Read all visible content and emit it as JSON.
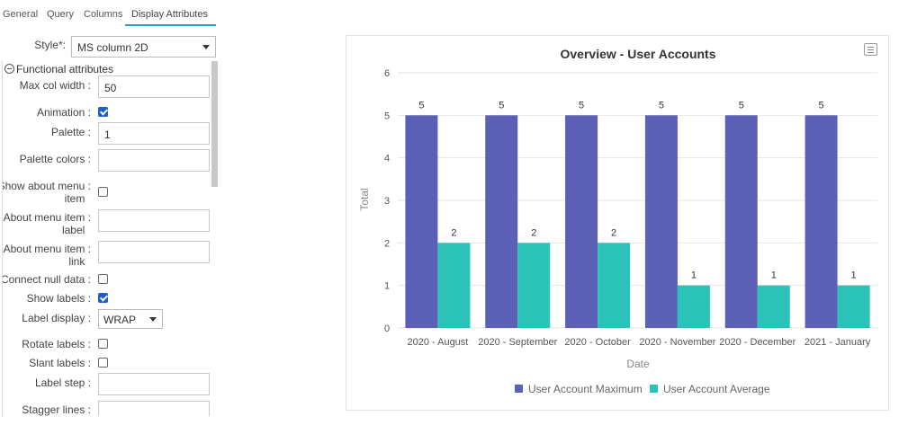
{
  "tabs": [
    {
      "label": "General"
    },
    {
      "label": "Query"
    },
    {
      "label": "Columns"
    },
    {
      "label": "Display Attributes"
    }
  ],
  "style_field": {
    "label": "Style*",
    "colon": ":",
    "value": "MS column 2D"
  },
  "panel": {
    "section_title": "Functional attributes",
    "max_col_width": {
      "label": "Max col width",
      "value": "50"
    },
    "animation": {
      "label": "Animation",
      "checked": true
    },
    "palette": {
      "label": "Palette",
      "value": "1"
    },
    "palette_colors": {
      "label": "Palette colors",
      "value": ""
    },
    "show_about_menu_item": {
      "label_line1": "Show about menu",
      "label_line2": "item",
      "checked": false
    },
    "about_menu_item_label": {
      "label_line1": "About menu item",
      "label_line2": "label",
      "value": ""
    },
    "about_menu_item_link": {
      "label_line1": "About menu item",
      "label_line2": "link",
      "value": ""
    },
    "connect_null_data": {
      "label": "Connect null data",
      "checked": false
    },
    "show_labels": {
      "label": "Show labels",
      "checked": true
    },
    "label_display": {
      "label": "Label display",
      "value": "WRAP"
    },
    "rotate_labels": {
      "label": "Rotate labels",
      "checked": false
    },
    "slant_labels": {
      "label": "Slant labels",
      "checked": false
    },
    "label_step": {
      "label": "Label step",
      "value": ""
    },
    "stagger_lines": {
      "label": "Stagger lines",
      "value": ""
    }
  },
  "colors": {
    "series1": "#5b5fb6",
    "series2": "#2bc2b8",
    "grid": "#e6e6e6",
    "accent": "#2a9fd6"
  },
  "chart_data": {
    "type": "bar",
    "title": "Overview - User Accounts",
    "xlabel": "Date",
    "ylabel": "Total",
    "categories": [
      "2020 - August",
      "2020 - September",
      "2020 - October",
      "2020 - November",
      "2020 - December",
      "2021 - January"
    ],
    "series": [
      {
        "name": "User Account Maximum",
        "values": [
          5,
          5,
          5,
          5,
          5,
          5
        ]
      },
      {
        "name": "User Account Average",
        "values": [
          2,
          2,
          2,
          1,
          1,
          1
        ]
      }
    ],
    "ylim": [
      0,
      6
    ],
    "yticks": [
      0,
      1,
      2,
      3,
      4,
      5,
      6
    ],
    "grid": true,
    "legend_position": "bottom"
  }
}
